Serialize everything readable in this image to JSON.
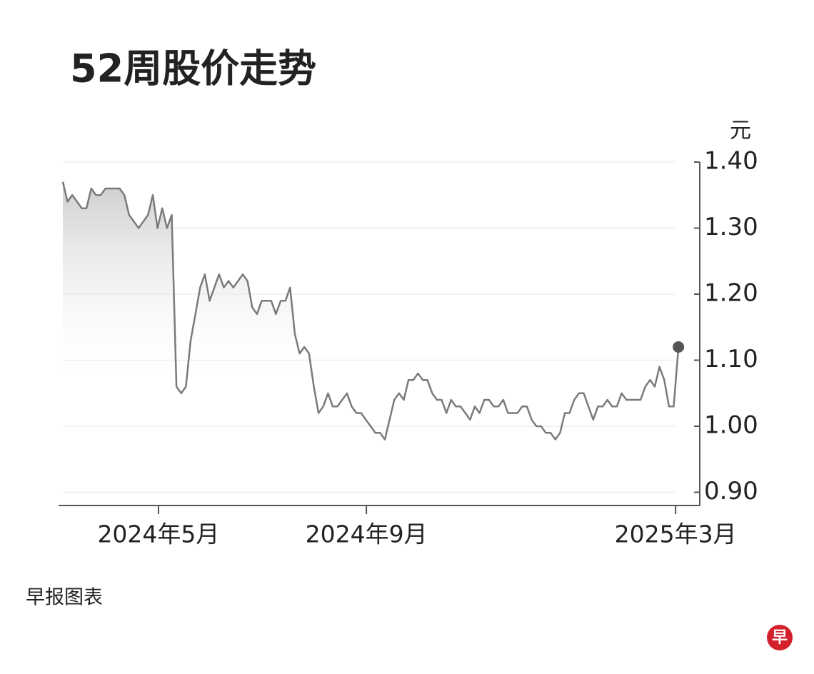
{
  "chart_data": {
    "type": "line",
    "title": "52周股价走势",
    "y_unit": "元",
    "source": "早报图表",
    "logo": "早",
    "color": "#7a7a7a",
    "grid": true,
    "xlim": [
      -0.9,
      134.5
    ],
    "xticks": [
      {
        "value": 20.2,
        "label": "2024年5月"
      },
      {
        "value": 64.1,
        "label": "2024年9月"
      },
      {
        "value": 129.4,
        "label": "2025年3月"
      }
    ],
    "ylim": [
      0.88,
      1.4
    ],
    "yticks": [
      {
        "value": 1.4,
        "label": "1.40"
      },
      {
        "value": 1.3,
        "label": "1.30"
      },
      {
        "value": 1.2,
        "label": "1.20"
      },
      {
        "value": 1.1,
        "label": "1.10"
      },
      {
        "value": 1.0,
        "label": "1.00"
      },
      {
        "value": 0.9,
        "label": "0.90"
      }
    ],
    "values": [
      1.37,
      1.34,
      1.35,
      1.34,
      1.33,
      1.33,
      1.36,
      1.35,
      1.35,
      1.36,
      1.36,
      1.36,
      1.36,
      1.35,
      1.32,
      1.31,
      1.3,
      1.31,
      1.32,
      1.35,
      1.3,
      1.33,
      1.3,
      1.32,
      1.06,
      1.05,
      1.06,
      1.13,
      1.17,
      1.21,
      1.23,
      1.19,
      1.21,
      1.23,
      1.21,
      1.22,
      1.21,
      1.22,
      1.23,
      1.22,
      1.18,
      1.17,
      1.19,
      1.19,
      1.19,
      1.17,
      1.19,
      1.19,
      1.21,
      1.14,
      1.11,
      1.12,
      1.11,
      1.06,
      1.02,
      1.03,
      1.05,
      1.03,
      1.03,
      1.04,
      1.05,
      1.03,
      1.02,
      1.02,
      1.01,
      1.0,
      0.99,
      0.99,
      0.98,
      1.01,
      1.04,
      1.05,
      1.04,
      1.07,
      1.07,
      1.08,
      1.07,
      1.07,
      1.05,
      1.04,
      1.04,
      1.02,
      1.04,
      1.03,
      1.03,
      1.02,
      1.01,
      1.03,
      1.02,
      1.04,
      1.04,
      1.03,
      1.03,
      1.04,
      1.02,
      1.02,
      1.02,
      1.03,
      1.03,
      1.01,
      1.0,
      1.0,
      0.99,
      0.99,
      0.98,
      0.99,
      1.02,
      1.02,
      1.04,
      1.05,
      1.05,
      1.03,
      1.01,
      1.03,
      1.03,
      1.04,
      1.03,
      1.03,
      1.05,
      1.04,
      1.04,
      1.04,
      1.04,
      1.06,
      1.07,
      1.06,
      1.09,
      1.07,
      1.03,
      1.03,
      1.12
    ]
  }
}
